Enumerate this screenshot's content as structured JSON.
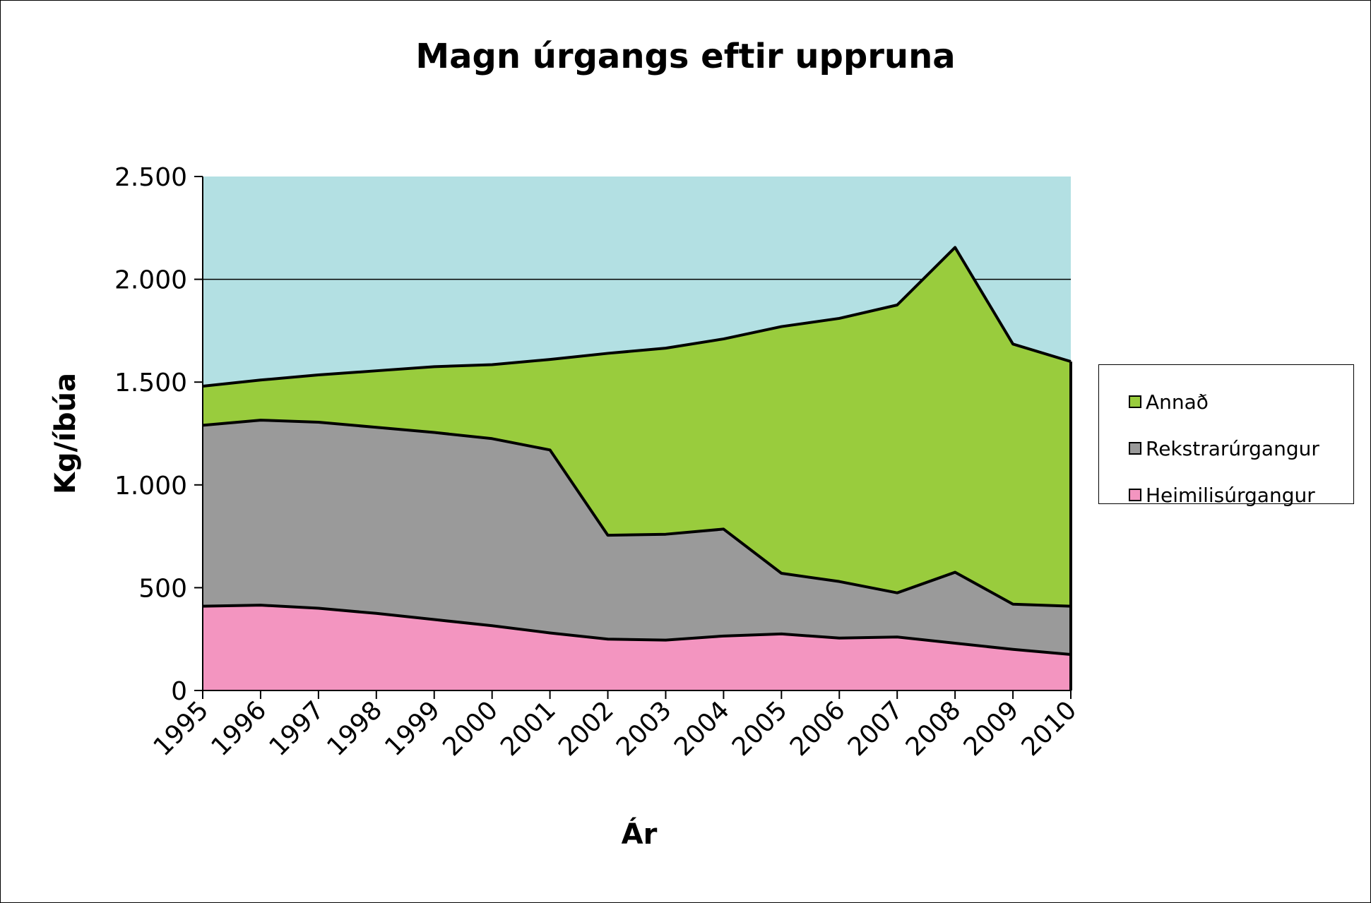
{
  "chart_data": {
    "type": "area",
    "stacked": true,
    "title": "Magn úrgangs eftir uppruna",
    "xlabel": "Ár",
    "ylabel": "Kg/íbúa",
    "categories": [
      "1995",
      "1996",
      "1997",
      "1998",
      "1999",
      "2000",
      "2001",
      "2002",
      "2003",
      "2004",
      "2005",
      "2006",
      "2007",
      "2008",
      "2009",
      "2010"
    ],
    "ylim": [
      0,
      2500
    ],
    "yticks": [
      0,
      500,
      1000,
      1500,
      2000,
      2500
    ],
    "ytick_labels": [
      "0",
      "500",
      "1.000",
      "1.500",
      "2.000",
      "2.500"
    ],
    "grid": "horizontal at 2.000",
    "legend": "right",
    "plot_background": "#b3e0e3",
    "series": [
      {
        "name": "Heimilisúrgangur",
        "color": "#f395c0",
        "values": [
          410,
          415,
          400,
          375,
          345,
          315,
          280,
          250,
          245,
          265,
          275,
          255,
          260,
          230,
          200,
          175
        ]
      },
      {
        "name": "Rekstrarúrgangur",
        "color": "#9a9a9a",
        "values": [
          880,
          900,
          905,
          905,
          910,
          910,
          890,
          505,
          515,
          520,
          295,
          275,
          215,
          345,
          220,
          235
        ]
      },
      {
        "name": "Annað",
        "color": "#99cc3d",
        "values": [
          190,
          195,
          230,
          275,
          320,
          360,
          440,
          885,
          905,
          925,
          1200,
          1280,
          1400,
          1580,
          1265,
          1190
        ]
      }
    ]
  }
}
